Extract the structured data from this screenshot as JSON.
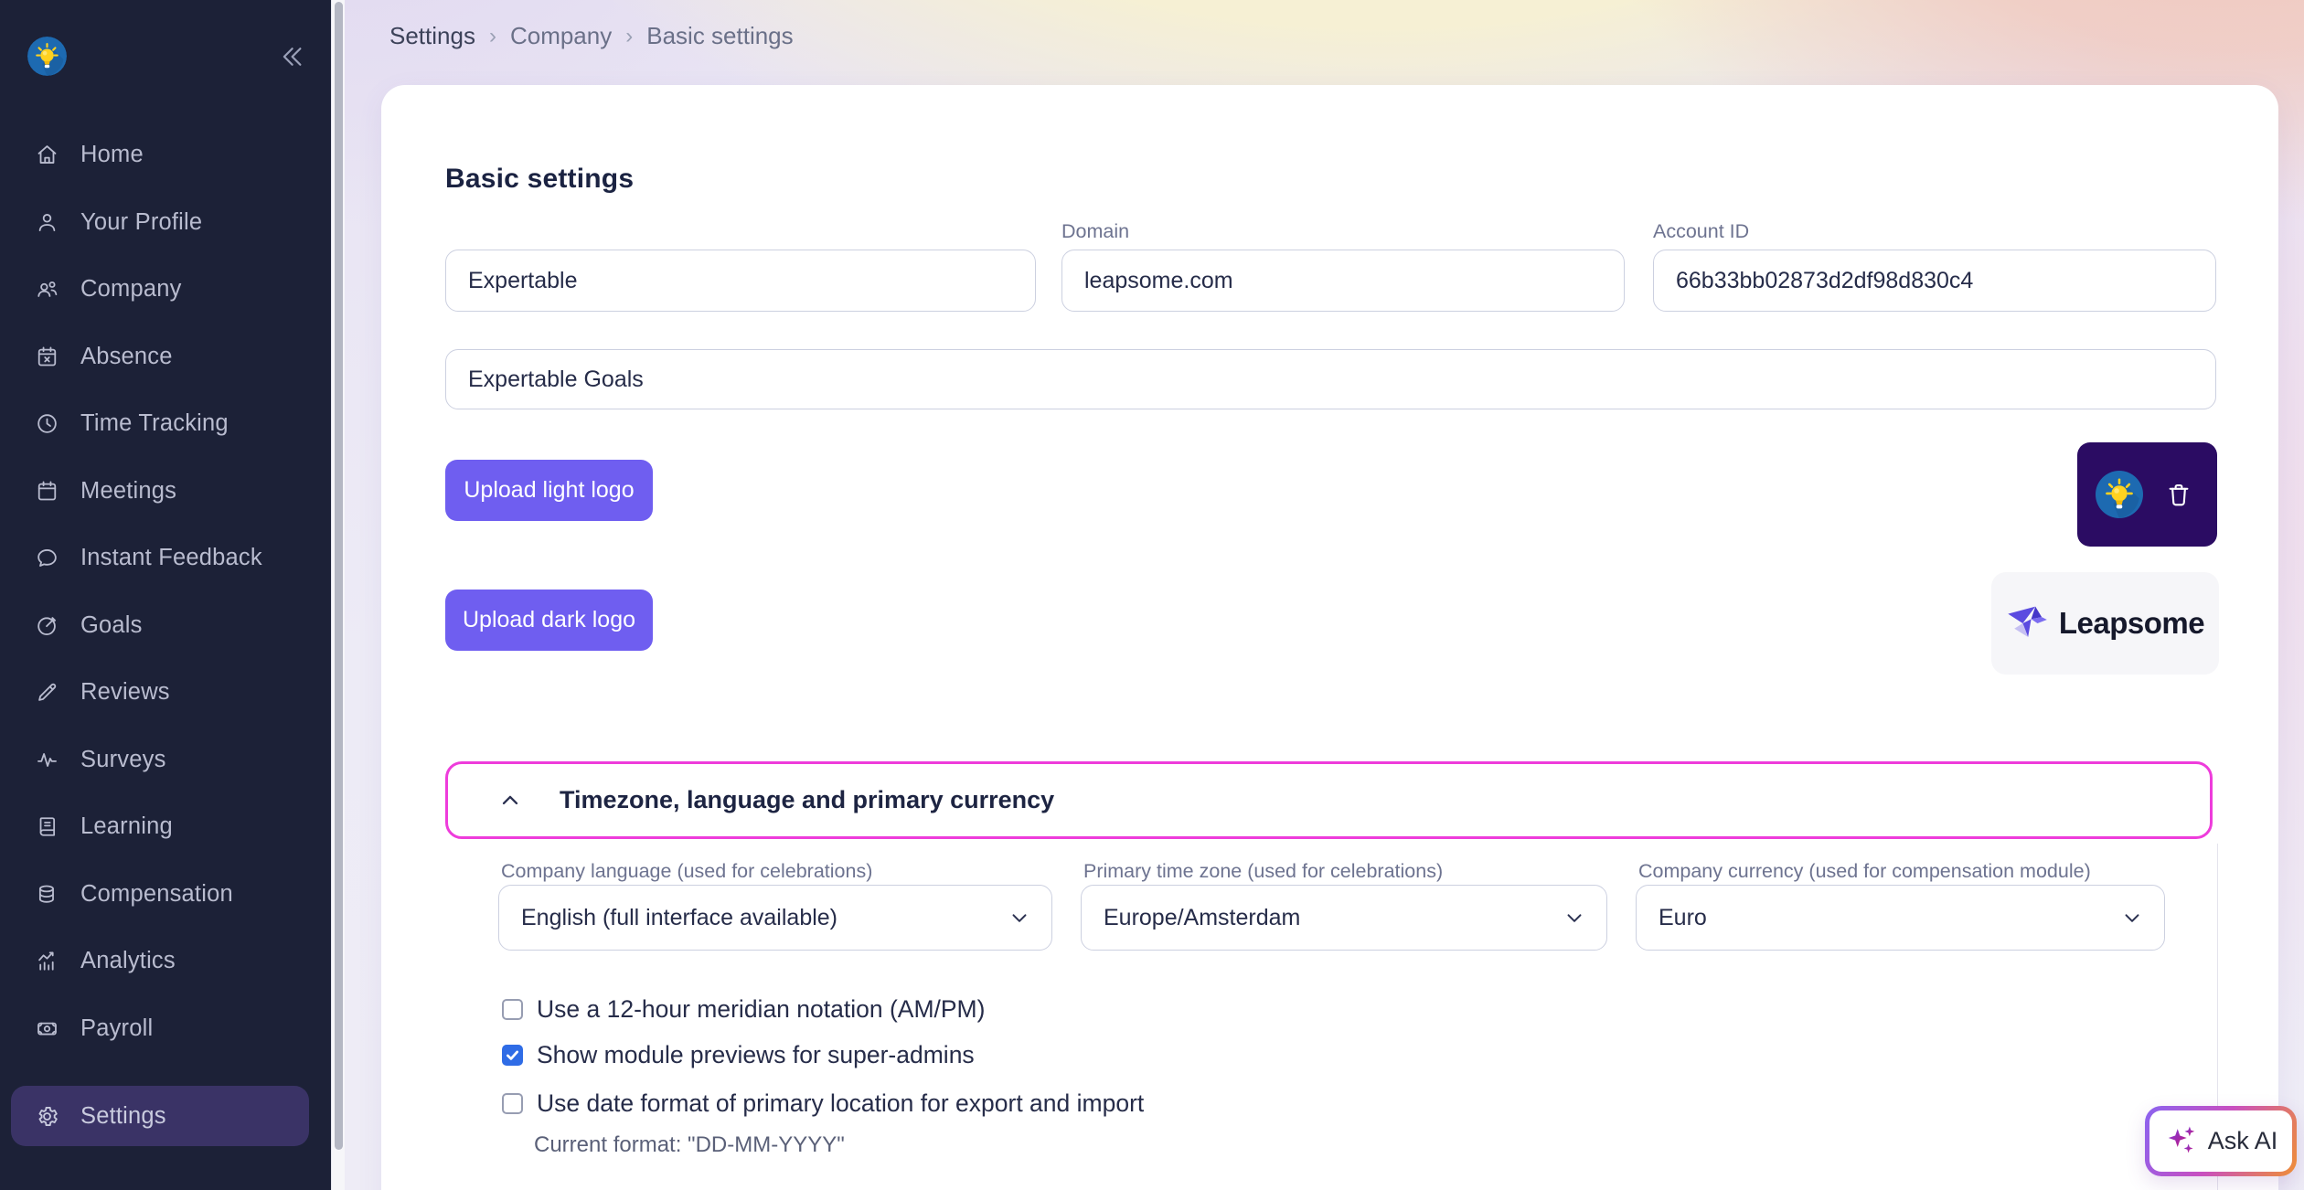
{
  "sidebar": {
    "items": [
      {
        "label": "Home",
        "icon": "home"
      },
      {
        "label": "Your Profile",
        "icon": "user"
      },
      {
        "label": "Company",
        "icon": "users"
      },
      {
        "label": "Absence",
        "icon": "calendar-x"
      },
      {
        "label": "Time Tracking",
        "icon": "clock"
      },
      {
        "label": "Meetings",
        "icon": "calendar"
      },
      {
        "label": "Instant Feedback",
        "icon": "chat"
      },
      {
        "label": "Goals",
        "icon": "target"
      },
      {
        "label": "Reviews",
        "icon": "pencil"
      },
      {
        "label": "Surveys",
        "icon": "activity"
      },
      {
        "label": "Learning",
        "icon": "book"
      },
      {
        "label": "Compensation",
        "icon": "coins"
      },
      {
        "label": "Analytics",
        "icon": "chart"
      },
      {
        "label": "Payroll",
        "icon": "banknote"
      },
      {
        "label": "Settings",
        "icon": "gear",
        "active": true
      }
    ]
  },
  "breadcrumb": {
    "items": [
      "Settings",
      "Company",
      "Basic settings"
    ],
    "separator": "›"
  },
  "page": {
    "title": "Basic settings"
  },
  "form": {
    "company_name": {
      "value": "Expertable"
    },
    "domain": {
      "label": "Domain",
      "value": "leapsome.com"
    },
    "account_id": {
      "label": "Account ID",
      "value": "66b33bb02873d2df98d830c4"
    },
    "goals_name": {
      "value": "Expertable Goals"
    },
    "upload_light_label": "Upload light logo",
    "upload_dark_label": "Upload dark logo",
    "dark_logo_brand": "Leapsome"
  },
  "section": {
    "title": "Timezone, language and primary currency",
    "fields": [
      {
        "label": "Company language (used for celebrations)",
        "value": "English (full interface available)"
      },
      {
        "label": "Primary time zone (used for celebrations)",
        "value": "Europe/Amsterdam"
      },
      {
        "label": "Company currency (used for compensation module)",
        "value": "Euro"
      }
    ],
    "checkboxes": [
      {
        "label": "Use a 12-hour meridian notation (AM/PM)",
        "checked": false
      },
      {
        "label": "Show module previews for super-admins",
        "checked": true
      },
      {
        "label": "Use date format of primary location for export and import",
        "checked": false
      }
    ],
    "format_note": "Current format: \"DD-MM-YYYY\""
  },
  "ask_ai": {
    "label": "Ask AI"
  },
  "colors": {
    "accent_purple": "#6F5EF0",
    "section_border_pink": "#EE3CDB",
    "checkbox_blue": "#2F6CE6",
    "sidebar_bg": "#1C2137",
    "sidebar_active_bg": "#3A3366",
    "dark_tile_bg": "#2B0C63",
    "card_bg": "#FFFFFF"
  }
}
